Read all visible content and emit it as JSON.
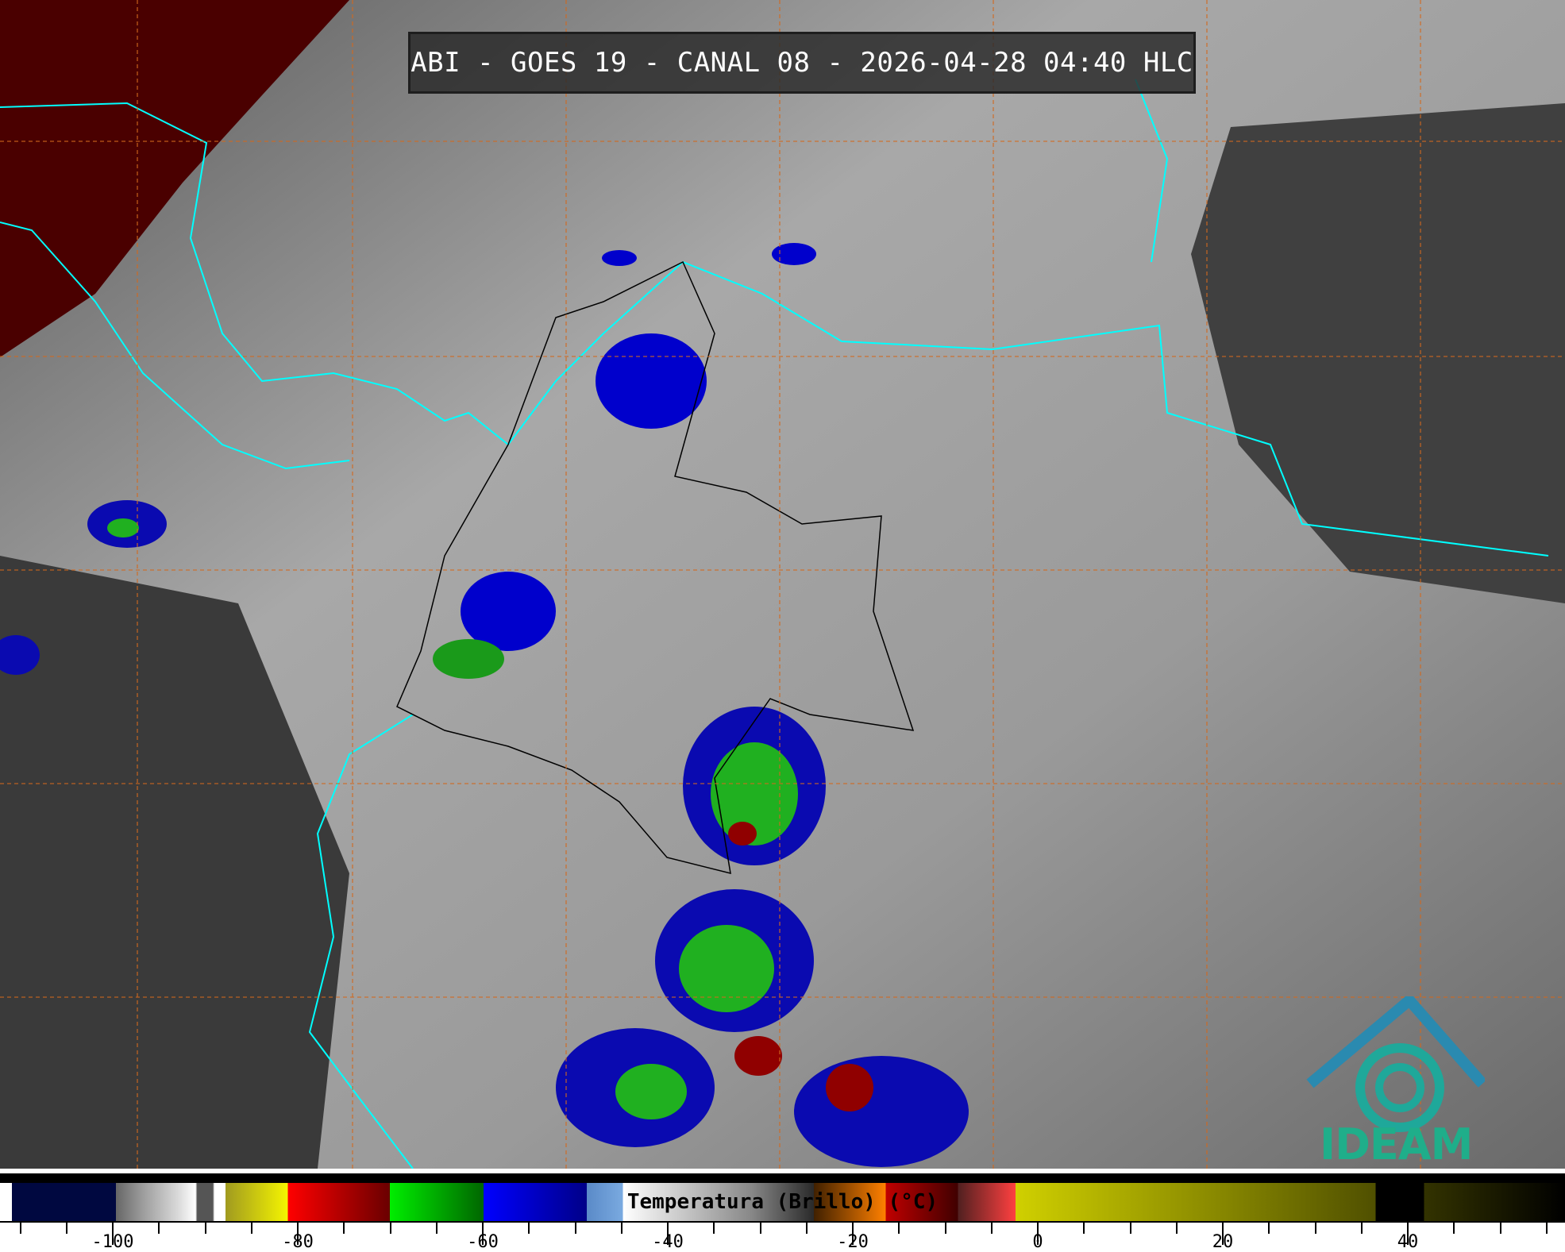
{
  "title": "ABI - GOES 19 - CANAL 08 - 2026-04-28 04:40 HLC",
  "colorbar": {
    "label": "Temperatura (Brillo) (°C)",
    "major_ticks": [
      -100,
      -80,
      -60,
      -40,
      -20,
      0,
      20,
      40
    ],
    "range": [
      -112,
      57
    ],
    "minor_step": 5
  },
  "logo": {
    "text": "IDEAM"
  },
  "colors": {
    "coastline": "#00ffff",
    "grid": "#d2691e",
    "borders": "#000000"
  }
}
